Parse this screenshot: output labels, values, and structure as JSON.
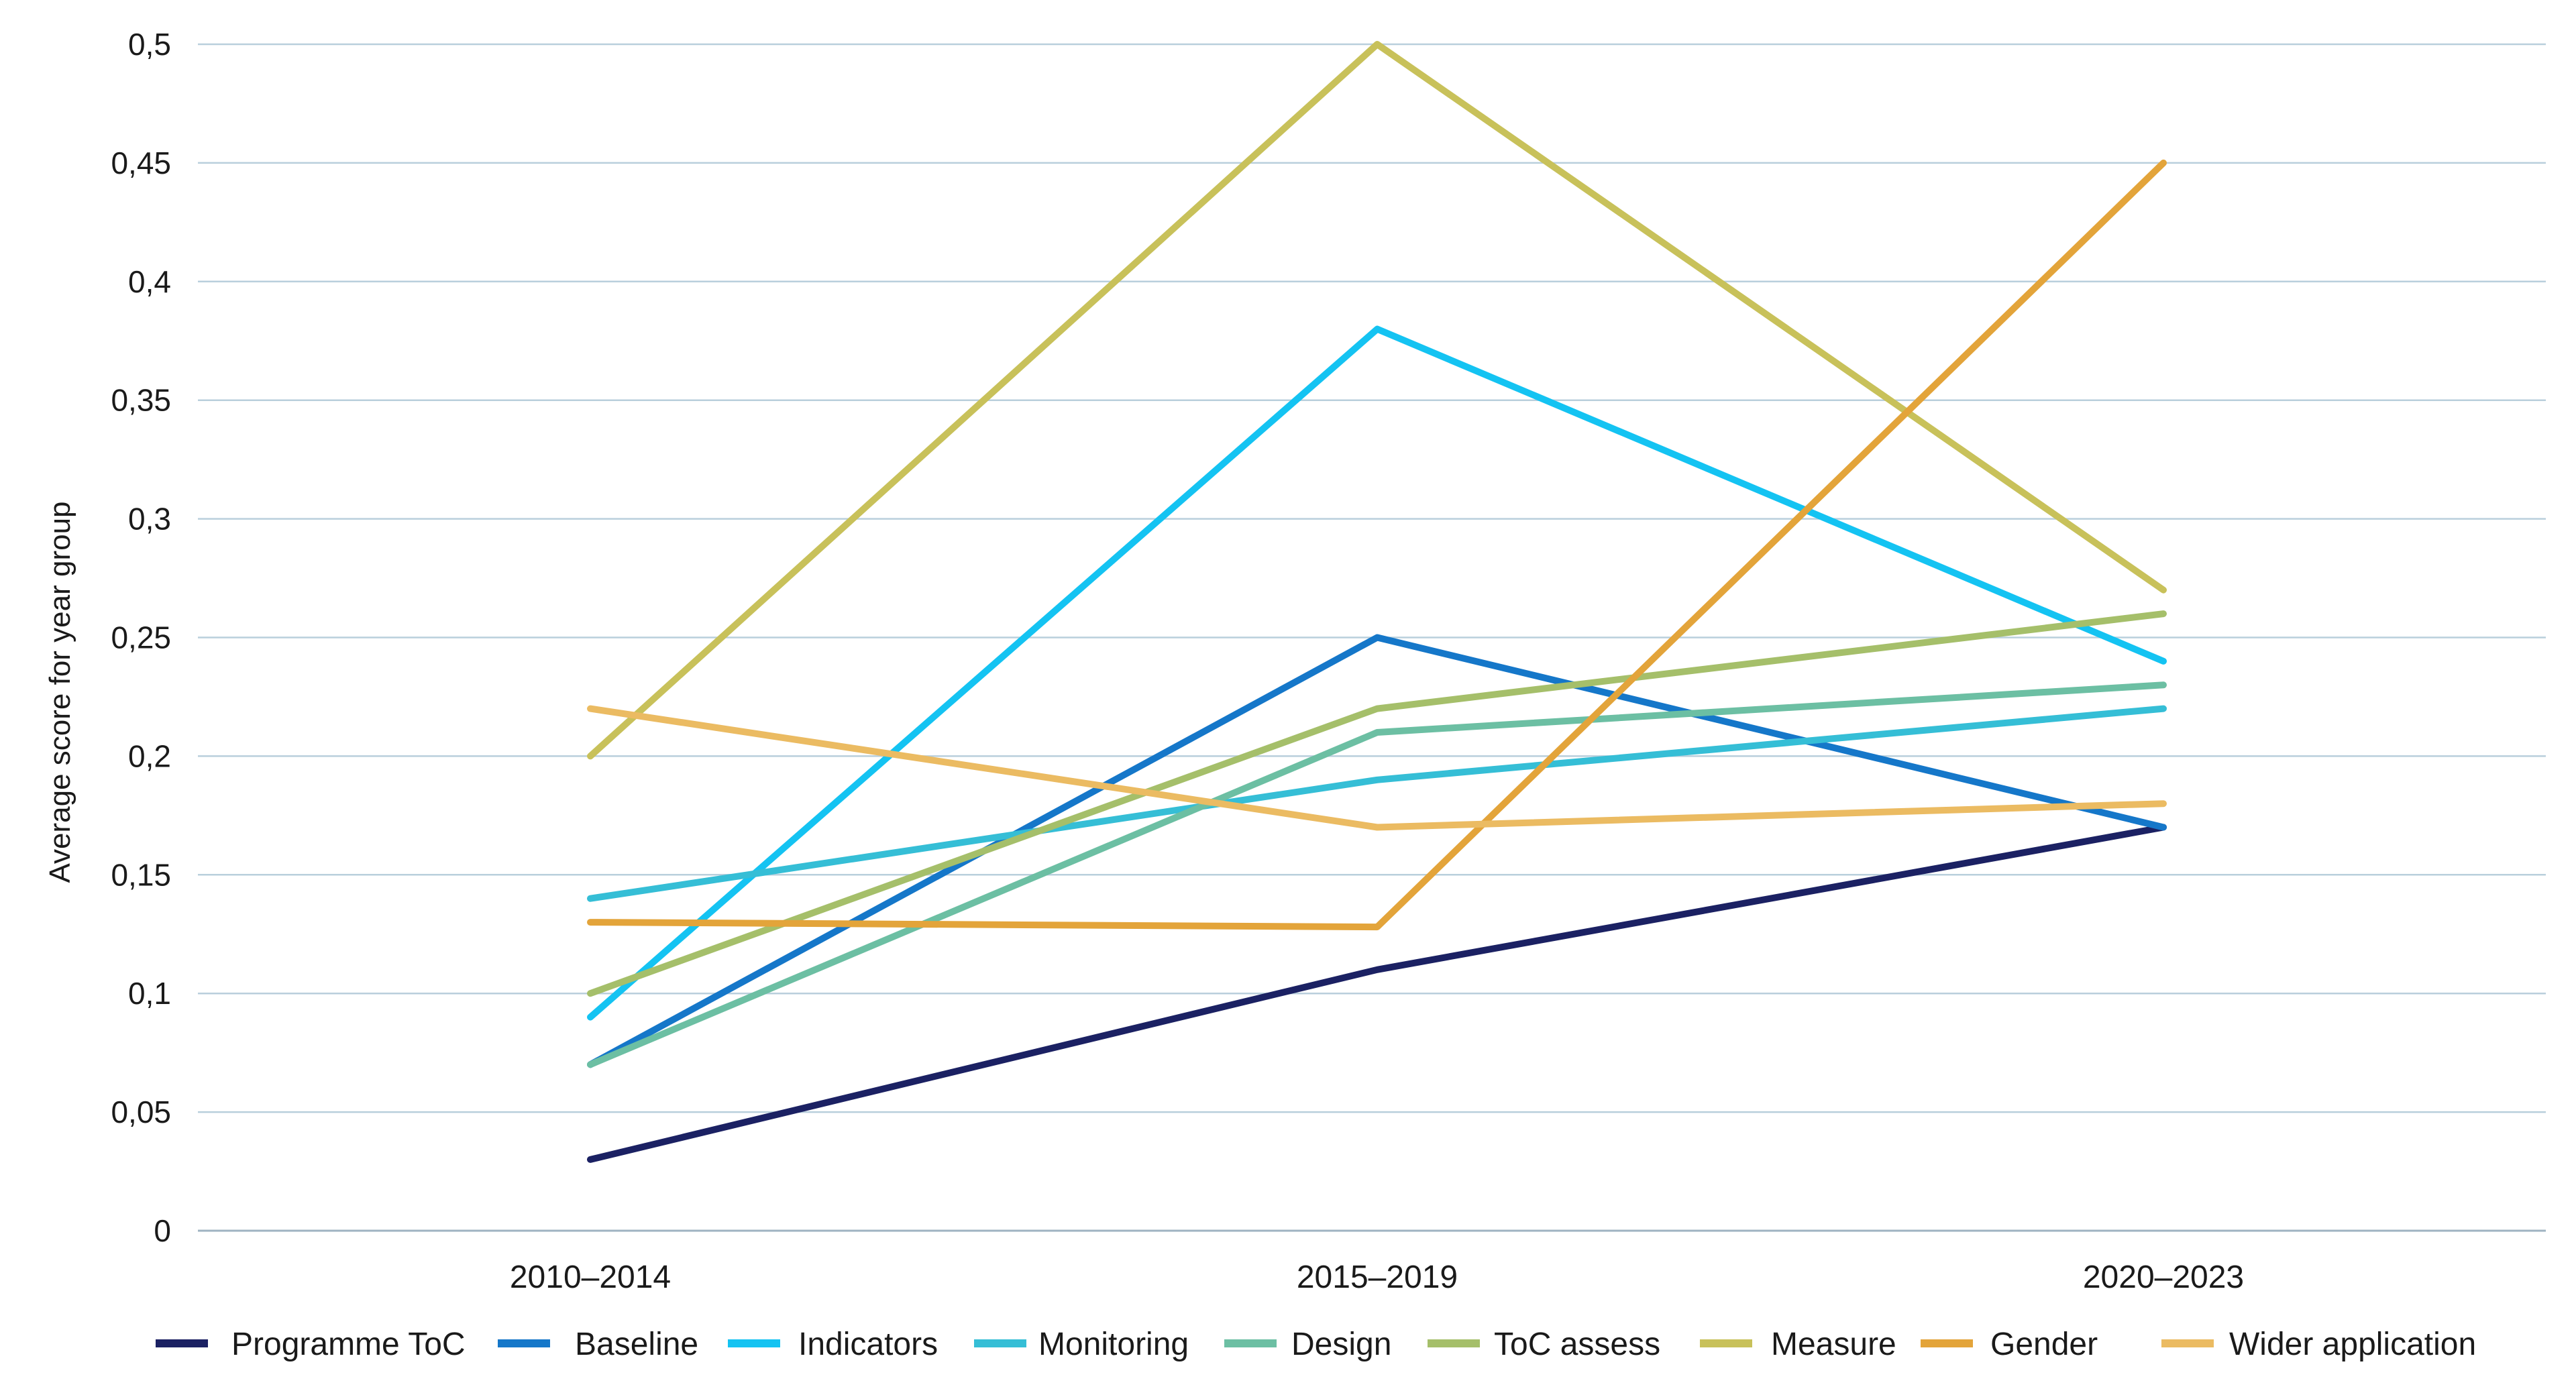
{
  "chart_data": {
    "type": "line",
    "title": "",
    "xlabel": "",
    "ylabel": "Average score for year group",
    "categories": [
      "2010–2014",
      "2015–2019",
      "2020–2023"
    ],
    "ylim": [
      0,
      0.5
    ],
    "yticks": [
      "0",
      "0,05",
      "0,1",
      "0,15",
      "0,2",
      "0,25",
      "0,3",
      "0,35",
      "0,4",
      "0,45",
      "0,5"
    ],
    "grid": true,
    "legend_position": "bottom",
    "series": [
      {
        "name": "Programme ToC",
        "color": "#1b2163",
        "values": [
          0.03,
          0.11,
          0.17
        ]
      },
      {
        "name": "Baseline",
        "color": "#1577c9",
        "values": [
          0.07,
          0.25,
          0.17
        ]
      },
      {
        "name": "Indicators",
        "color": "#14c3f2",
        "values": [
          0.09,
          0.38,
          0.24
        ]
      },
      {
        "name": "Monitoring",
        "color": "#35bed6",
        "values": [
          0.14,
          0.19,
          0.22
        ]
      },
      {
        "name": "Design",
        "color": "#6cbfa3",
        "values": [
          0.07,
          0.21,
          0.23
        ]
      },
      {
        "name": "ToC assess",
        "color": "#a5bf6a",
        "values": [
          0.1,
          0.22,
          0.26
        ]
      },
      {
        "name": "Measure",
        "color": "#c8c15a",
        "values": [
          0.2,
          0.5,
          0.27
        ]
      },
      {
        "name": "Gender",
        "color": "#e3a43a",
        "values": [
          0.13,
          0.128,
          0.45
        ]
      },
      {
        "name": "Wider application",
        "color": "#ebbb62",
        "values": [
          0.22,
          0.17,
          0.18
        ]
      }
    ]
  }
}
